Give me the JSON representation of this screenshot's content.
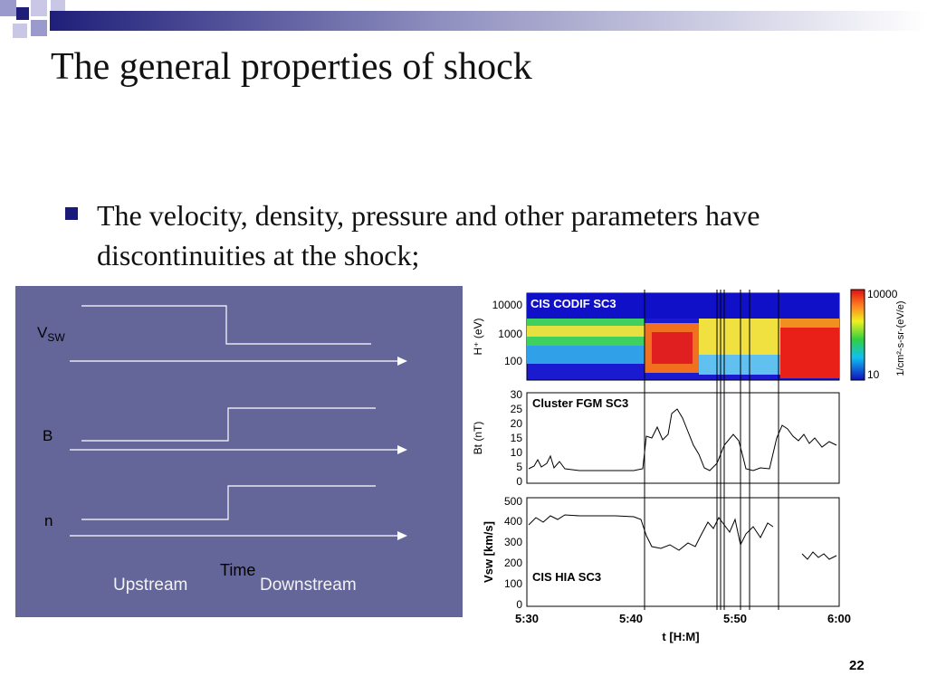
{
  "slide": {
    "title": "The general properties of shock",
    "bullet": "The velocity, density, pressure and other parameters have discontinuities at the shock;",
    "page_number": "22"
  },
  "diagram": {
    "labels": {
      "vsw": "V",
      "vsw_sub": "SW",
      "b": "B",
      "n": "n",
      "time": "Time",
      "upstream": "Upstream",
      "downstream": "Downstream"
    },
    "colors": {
      "background": "#646699",
      "lines": "#ffffff"
    }
  },
  "figure": {
    "panel1": {
      "ylabel": "H⁺ (eV)",
      "title": "CIS CODIF  SC3",
      "yticks": [
        "10000",
        "1000",
        "100"
      ],
      "colorbar_ticks": [
        "10000",
        "10"
      ],
      "colorbar_label": "1/cm²-s-sr-(eV/e)"
    },
    "panel2": {
      "ylabel": "Bt (nT)",
      "title": "Cluster FGM  SC3",
      "yticks": [
        "30",
        "25",
        "20",
        "15",
        "10",
        "5",
        "0"
      ]
    },
    "panel3": {
      "ylabel": "Vsw [km/s]",
      "title": "CIS HIA  SC3",
      "yticks": [
        "500",
        "400",
        "300",
        "200",
        "100",
        "0"
      ]
    },
    "xaxis": {
      "label": "t [H:M]",
      "ticks": [
        "5:30",
        "5:40",
        "5:50",
        "6:00"
      ]
    }
  }
}
